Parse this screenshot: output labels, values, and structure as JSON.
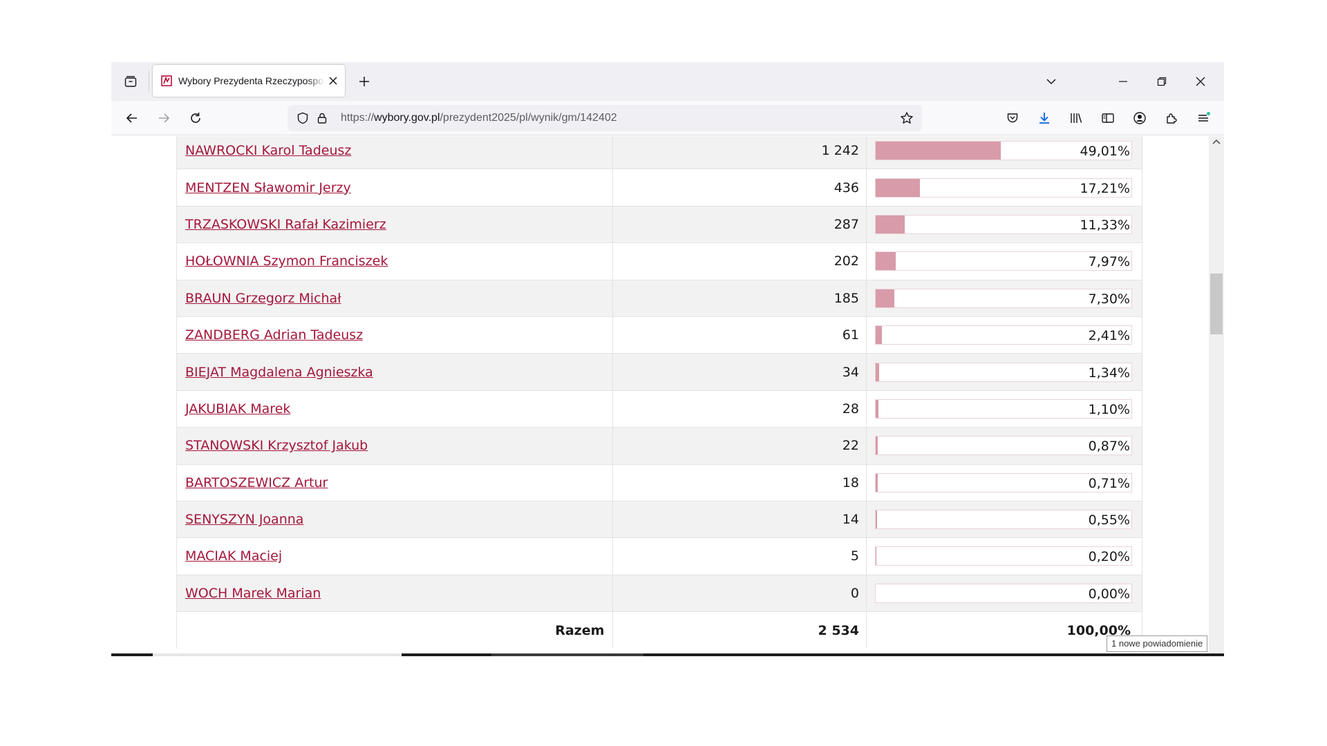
{
  "browser": {
    "tab": {
      "title": "Wybory Prezydenta Rzeczypospolitej Polskiej"
    },
    "url": {
      "scheme": "https://",
      "host": "wybory.gov.pl",
      "path": "/prezydent2025/pl/wynik/gm/142402"
    },
    "icons": {
      "tab_list": "tab-list-icon",
      "close_tab": "close-icon",
      "new_tab": "plus-icon",
      "tab_dropdown": "chevron-down-icon",
      "minimize": "minimize-icon",
      "restore": "restore-icon",
      "close_window": "close-icon",
      "back": "back-arrow-icon",
      "forward": "forward-arrow-icon",
      "reload": "reload-icon",
      "tracking_protection": "shield-icon",
      "lock": "lock-icon",
      "bookmark": "star-icon",
      "pocket": "pocket-icon",
      "downloads": "download-icon",
      "library": "library-icon",
      "sidebar": "sidebar-icon",
      "account": "account-icon",
      "extensions": "puzzle-icon",
      "menu": "hamburger-menu-icon"
    },
    "accent": "#0060df"
  },
  "results": {
    "rows": [
      {
        "name": "NAWROCKI Karol Tadeusz",
        "votes": "1 242",
        "percent": "49,01%",
        "share": 49.01
      },
      {
        "name": "MENTZEN Sławomir Jerzy",
        "votes": "436",
        "percent": "17,21%",
        "share": 17.21
      },
      {
        "name": "TRZASKOWSKI Rafał Kazimierz",
        "votes": "287",
        "percent": "11,33%",
        "share": 11.33
      },
      {
        "name": "HOŁOWNIA Szymon Franciszek",
        "votes": "202",
        "percent": "7,97%",
        "share": 7.97
      },
      {
        "name": "BRAUN Grzegorz Michał",
        "votes": "185",
        "percent": "7,30%",
        "share": 7.3
      },
      {
        "name": "ZANDBERG Adrian Tadeusz",
        "votes": "61",
        "percent": "2,41%",
        "share": 2.41
      },
      {
        "name": "BIEJAT Magdalena Agnieszka",
        "votes": "34",
        "percent": "1,34%",
        "share": 1.34
      },
      {
        "name": "JAKUBIAK Marek",
        "votes": "28",
        "percent": "1,10%",
        "share": 1.1
      },
      {
        "name": "STANOWSKI Krzysztof Jakub",
        "votes": "22",
        "percent": "0,87%",
        "share": 0.87
      },
      {
        "name": "BARTOSZEWICZ Artur",
        "votes": "18",
        "percent": "0,71%",
        "share": 0.71
      },
      {
        "name": "SENYSZYN Joanna",
        "votes": "14",
        "percent": "0,55%",
        "share": 0.55
      },
      {
        "name": "MACIAK Maciej",
        "votes": "5",
        "percent": "0,20%",
        "share": 0.2
      },
      {
        "name": "WOCH Marek Marian",
        "votes": "0",
        "percent": "0,00%",
        "share": 0.0
      }
    ],
    "total": {
      "label": "Razem",
      "votes": "2 534",
      "percent": "100,00%"
    },
    "colors": {
      "link": "#a3173a",
      "bar_fill": "#d89ba9",
      "row_alt": "#f2f2f2"
    }
  },
  "notification": {
    "text": "1 nowe powiadomienie"
  }
}
